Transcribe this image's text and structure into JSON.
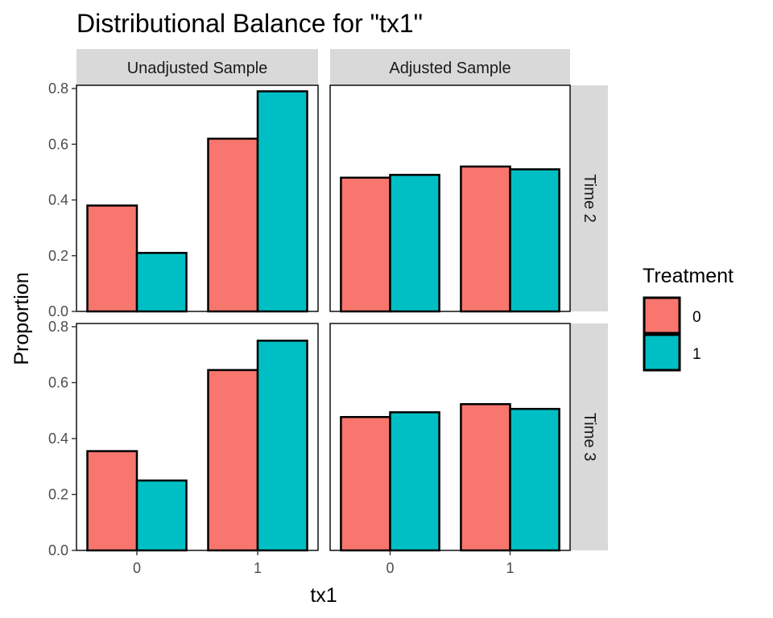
{
  "chart_data": {
    "type": "bar",
    "title": "Distributional Balance for \"tx1\"",
    "xlabel": "tx1",
    "ylabel": "Proportion",
    "ylim": [
      0,
      0.8
    ],
    "yticks": [
      "0.0",
      "0.2",
      "0.4",
      "0.6",
      "0.8"
    ],
    "categories": [
      "0",
      "1"
    ],
    "facet_columns": [
      "Unadjusted Sample",
      "Adjusted Sample"
    ],
    "facet_rows": [
      "Time 2",
      "Time 3"
    ],
    "legend": {
      "title": "Treatment",
      "position": "right",
      "entries": [
        {
          "label": "0",
          "color": "#F8766D"
        },
        {
          "label": "1",
          "color": "#00BFC4"
        }
      ]
    },
    "panels": [
      {
        "column": "Unadjusted Sample",
        "row": "Time 2",
        "series": [
          {
            "name": "0",
            "values": [
              0.38,
              0.62
            ]
          },
          {
            "name": "1",
            "values": [
              0.21,
              0.79
            ]
          }
        ]
      },
      {
        "column": "Adjusted Sample",
        "row": "Time 2",
        "series": [
          {
            "name": "0",
            "values": [
              0.48,
              0.52
            ]
          },
          {
            "name": "1",
            "values": [
              0.49,
              0.51
            ]
          }
        ]
      },
      {
        "column": "Unadjusted Sample",
        "row": "Time 3",
        "series": [
          {
            "name": "0",
            "values": [
              0.355,
              0.645
            ]
          },
          {
            "name": "1",
            "values": [
              0.25,
              0.75
            ]
          }
        ]
      },
      {
        "column": "Adjusted Sample",
        "row": "Time 3",
        "series": [
          {
            "name": "0",
            "values": [
              0.477,
              0.523
            ]
          },
          {
            "name": "1",
            "values": [
              0.494,
              0.506
            ]
          }
        ]
      }
    ],
    "grid": false
  }
}
